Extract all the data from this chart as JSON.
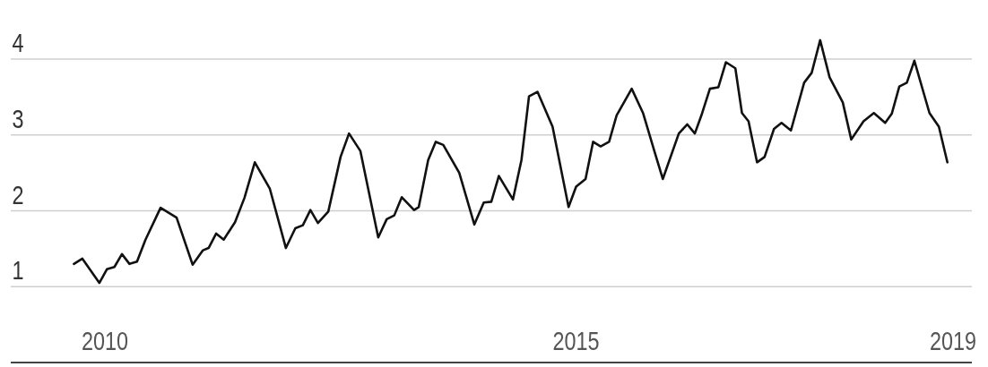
{
  "chart_data": {
    "type": "line",
    "x": [
      2009.67,
      2009.76,
      2009.94,
      2010.02,
      2010.1,
      2010.18,
      2010.26,
      2010.34,
      2010.43,
      2010.59,
      2010.76,
      2010.93,
      2011.04,
      2011.1,
      2011.18,
      2011.26,
      2011.38,
      2011.48,
      2011.59,
      2011.75,
      2011.92,
      2012.02,
      2012.1,
      2012.18,
      2012.26,
      2012.37,
      2012.5,
      2012.59,
      2012.71,
      2012.9,
      2012.99,
      2013.07,
      2013.15,
      2013.28,
      2013.33,
      2013.43,
      2013.51,
      2013.59,
      2013.76,
      2013.92,
      2014.02,
      2014.1,
      2014.18,
      2014.33,
      2014.42,
      2014.5,
      2014.59,
      2014.75,
      2014.92,
      2015.0,
      2015.1,
      2015.18,
      2015.26,
      2015.35,
      2015.43,
      2015.59,
      2015.71,
      2015.83,
      2015.92,
      2016.09,
      2016.18,
      2016.26,
      2016.33,
      2016.42,
      2016.51,
      2016.59,
      2016.69,
      2016.76,
      2016.83,
      2016.92,
      2017.0,
      2017.1,
      2017.18,
      2017.28,
      2017.42,
      2017.5,
      2017.59,
      2017.69,
      2017.83,
      2017.92,
      2018.05,
      2018.16,
      2018.28,
      2018.35,
      2018.43,
      2018.51,
      2018.59,
      2018.75,
      2018.85,
      2018.94
    ],
    "series": [
      {
        "color": "#111111",
        "values": [
          1.3,
          1.37,
          1.05,
          1.23,
          1.26,
          1.43,
          1.3,
          1.33,
          1.62,
          2.04,
          1.91,
          1.29,
          1.48,
          1.51,
          1.7,
          1.62,
          1.85,
          2.17,
          2.64,
          2.29,
          1.51,
          1.77,
          1.81,
          2.01,
          1.84,
          1.99,
          2.71,
          3.02,
          2.79,
          1.65,
          1.89,
          1.94,
          2.18,
          2.01,
          2.05,
          2.67,
          2.91,
          2.87,
          2.5,
          1.82,
          2.11,
          2.12,
          2.46,
          2.15,
          2.67,
          3.51,
          3.57,
          3.11,
          2.05,
          2.32,
          2.42,
          2.91,
          2.85,
          2.91,
          3.26,
          3.61,
          3.29,
          2.79,
          2.42,
          3.02,
          3.14,
          3.02,
          3.26,
          3.61,
          3.63,
          3.96,
          3.88,
          3.29,
          3.18,
          2.64,
          2.71,
          3.08,
          3.16,
          3.06,
          3.69,
          3.82,
          4.25,
          3.76,
          3.43,
          2.94,
          3.18,
          3.29,
          3.16,
          3.28,
          3.64,
          3.69,
          3.98,
          3.29,
          3.11,
          2.64
        ]
      }
    ],
    "xlim": [
      2009,
      2019.2
    ],
    "ylim": [
      0,
      4.78
    ],
    "xticks": [
      2010,
      2015,
      2019
    ],
    "yticks": [
      1,
      2,
      3,
      4
    ],
    "grid": "y"
  }
}
